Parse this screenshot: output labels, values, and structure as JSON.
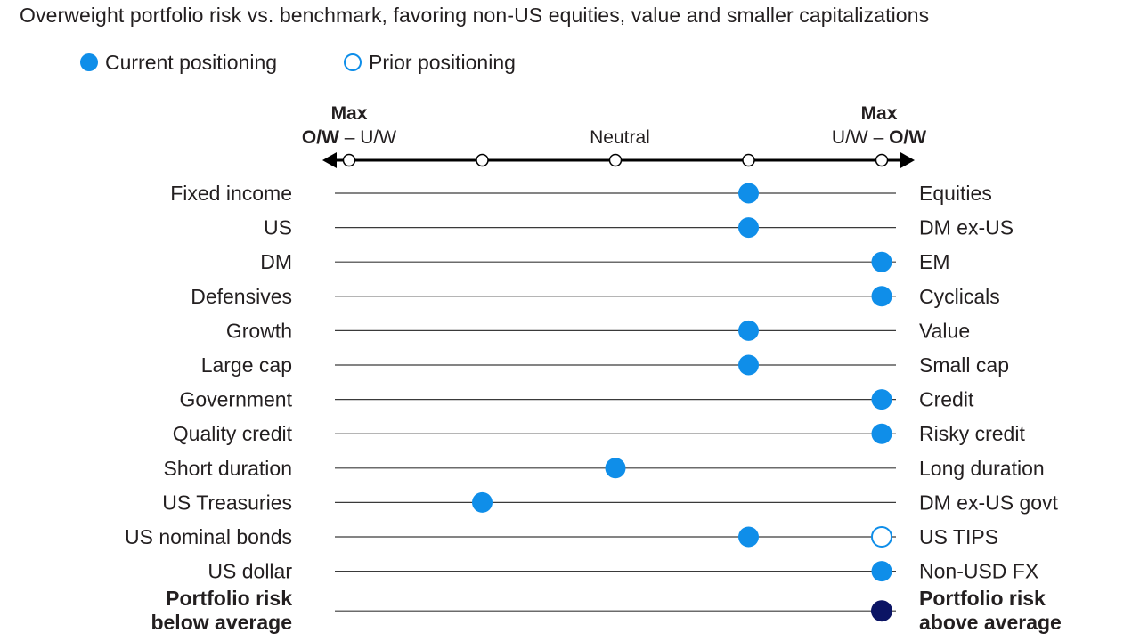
{
  "title": "Overweight portfolio risk vs. benchmark, favoring non-US equities, value and smaller capitalizations",
  "legend": {
    "current_label": "Current positioning",
    "prior_label": "Prior positioning"
  },
  "colors": {
    "current": "#0f8ee9",
    "risk_marker": "#0b1464",
    "axis": "#000000",
    "line": "#3a3a3a",
    "text": "#231f20"
  },
  "chart_data": {
    "type": "dot-scale",
    "scale": {
      "positions": [
        1,
        2,
        3,
        4,
        5
      ],
      "neutral_position": 3,
      "left_end_label": {
        "line1": "Max",
        "line2_bold": "O/W",
        "line2_sep": " – ",
        "line2_rest": "U/W"
      },
      "center_label": "Neutral",
      "right_end_label": {
        "line1": "Max",
        "line2_rest": "U/W",
        "line2_sep": " – ",
        "line2_bold": "O/W"
      }
    },
    "rows": [
      {
        "left": "Fixed income",
        "right": "Equities",
        "current": 4
      },
      {
        "left": "US",
        "right": "DM ex-US",
        "current": 4
      },
      {
        "left": "DM",
        "right": "EM",
        "current": 5
      },
      {
        "left": "Defensives",
        "right": "Cyclicals",
        "current": 5
      },
      {
        "left": "Growth",
        "right": "Value",
        "current": 4
      },
      {
        "left": "Large cap",
        "right": "Small cap",
        "current": 4
      },
      {
        "left": "Government",
        "right": "Credit",
        "current": 5
      },
      {
        "left": "Quality credit",
        "right": "Risky credit",
        "current": 5
      },
      {
        "left": "Short duration",
        "right": "Long duration",
        "current": 3
      },
      {
        "left": "US Treasuries",
        "right": "DM ex-US govt",
        "current": 2
      },
      {
        "left": "US nominal bonds",
        "right": "US TIPS",
        "current": 4,
        "prior": 5
      },
      {
        "left": "US dollar",
        "right": "Non-USD FX",
        "current": 5
      }
    ],
    "risk_row": {
      "left_lines": [
        "Portfolio risk",
        "below average"
      ],
      "right_lines": [
        "Portfolio risk",
        "above average"
      ],
      "current": 5
    }
  }
}
